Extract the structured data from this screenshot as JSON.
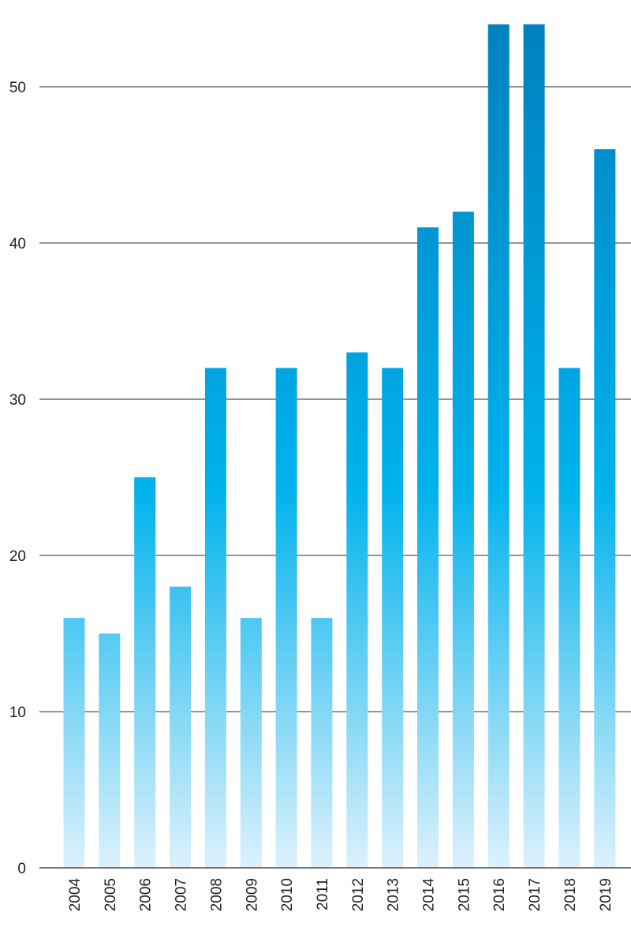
{
  "chart_data": {
    "type": "bar",
    "title": "",
    "xlabel": "",
    "ylabel": "",
    "categories": [
      "2004",
      "2005",
      "2006",
      "2007",
      "2008",
      "2009",
      "2010",
      "2011",
      "2012",
      "2013",
      "2014",
      "2015",
      "2016",
      "2017",
      "2018",
      "2019"
    ],
    "values": [
      16,
      15,
      25,
      18,
      32,
      16,
      32,
      16,
      33,
      32,
      41,
      42,
      54,
      54,
      32,
      46
    ],
    "ylim": [
      0,
      54
    ],
    "yticks": [
      0,
      10,
      20,
      30,
      40,
      50
    ],
    "grid": true,
    "legend": "none"
  },
  "colors": {
    "bar_top": "#0081BF",
    "bar_mid": "#00B2EC",
    "bar_bottom": "#DDF1FC",
    "grid": "#2b2b2b",
    "text": "#222222"
  }
}
